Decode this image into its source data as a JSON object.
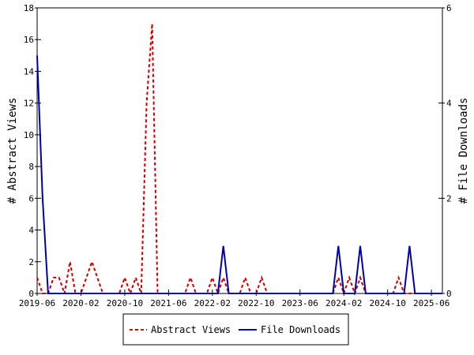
{
  "chart_data": {
    "type": "line",
    "ylabel": "# Abstract Views",
    "y2label": "# File Downloads",
    "ylim": [
      0,
      18
    ],
    "y2lim": [
      0,
      6
    ],
    "yticks": [
      0,
      2,
      4,
      6,
      8,
      10,
      12,
      14,
      16,
      18
    ],
    "y2ticks": [
      0,
      2,
      4,
      6
    ],
    "xticks": [
      "2019-06",
      "2020-02",
      "2020-10",
      "2021-06",
      "2022-02",
      "2022-10",
      "2023-06",
      "2024-02",
      "2024-10",
      "2025-06"
    ],
    "xlim": [
      "2019-06",
      "2025-08"
    ],
    "grid": false,
    "legend": "bottom",
    "series": [
      {
        "name": "Abstract Views",
        "axis": "left",
        "color": "#cc0000",
        "style": "dashed",
        "x": [
          "2019-06",
          "2019-07",
          "2019-08",
          "2019-09",
          "2019-10",
          "2019-11",
          "2019-12",
          "2020-01",
          "2020-02",
          "2020-03",
          "2020-04",
          "2020-05",
          "2020-06",
          "2020-07",
          "2020-08",
          "2020-09",
          "2020-10",
          "2020-11",
          "2020-12",
          "2021-01",
          "2021-02",
          "2021-03",
          "2021-04",
          "2021-05",
          "2021-06",
          "2021-07",
          "2021-08",
          "2021-09",
          "2021-10",
          "2021-11",
          "2021-12",
          "2022-01",
          "2022-02",
          "2022-03",
          "2022-04",
          "2022-05",
          "2022-06",
          "2022-07",
          "2022-08",
          "2022-09",
          "2022-10",
          "2022-11",
          "2022-12",
          "2023-01",
          "2023-02",
          "2023-03",
          "2023-04",
          "2023-05",
          "2023-06",
          "2023-07",
          "2023-08",
          "2023-09",
          "2023-10",
          "2023-11",
          "2023-12",
          "2024-01",
          "2024-02",
          "2024-03",
          "2024-04",
          "2024-05",
          "2024-06",
          "2024-07",
          "2024-08",
          "2024-09",
          "2024-10",
          "2024-11",
          "2024-12",
          "2025-01",
          "2025-02",
          "2025-03",
          "2025-04",
          "2025-05",
          "2025-06",
          "2025-07",
          "2025-08"
        ],
        "values": [
          1,
          0,
          0,
          1,
          1,
          0,
          2,
          0,
          0,
          1,
          2,
          1,
          0,
          0,
          0,
          0,
          1,
          0,
          1,
          0,
          12,
          17,
          0,
          0,
          0,
          0,
          0,
          0,
          1,
          0,
          0,
          0,
          1,
          0,
          1,
          0,
          0,
          0,
          1,
          0,
          0,
          1,
          0,
          0,
          0,
          0,
          0,
          0,
          0,
          0,
          0,
          0,
          0,
          0,
          0,
          1,
          0,
          1,
          0,
          1,
          0,
          0,
          0,
          0,
          0,
          0,
          1,
          0,
          0,
          0,
          0,
          0,
          0,
          0,
          0
        ]
      },
      {
        "name": "File Downloads",
        "axis": "right",
        "color": "#0000aa",
        "style": "solid",
        "x": [
          "2019-06",
          "2019-07",
          "2019-08",
          "2019-09",
          "2019-10",
          "2019-11",
          "2019-12",
          "2020-01",
          "2020-02",
          "2020-03",
          "2020-04",
          "2020-05",
          "2020-06",
          "2020-07",
          "2020-08",
          "2020-09",
          "2020-10",
          "2020-11",
          "2020-12",
          "2021-01",
          "2021-02",
          "2021-03",
          "2021-04",
          "2021-05",
          "2021-06",
          "2021-07",
          "2021-08",
          "2021-09",
          "2021-10",
          "2021-11",
          "2021-12",
          "2022-01",
          "2022-02",
          "2022-03",
          "2022-04",
          "2022-05",
          "2022-06",
          "2022-07",
          "2022-08",
          "2022-09",
          "2022-10",
          "2022-11",
          "2022-12",
          "2023-01",
          "2023-02",
          "2023-03",
          "2023-04",
          "2023-05",
          "2023-06",
          "2023-07",
          "2023-08",
          "2023-09",
          "2023-10",
          "2023-11",
          "2023-12",
          "2024-01",
          "2024-02",
          "2024-03",
          "2024-04",
          "2024-05",
          "2024-06",
          "2024-07",
          "2024-08",
          "2024-09",
          "2024-10",
          "2024-11",
          "2024-12",
          "2025-01",
          "2025-02",
          "2025-03",
          "2025-04",
          "2025-05",
          "2025-06",
          "2025-07",
          "2025-08"
        ],
        "values": [
          5,
          2,
          0,
          0,
          0,
          0,
          0,
          0,
          0,
          0,
          0,
          0,
          0,
          0,
          0,
          0,
          0,
          0,
          0,
          0,
          0,
          0,
          0,
          0,
          0,
          0,
          0,
          0,
          0,
          0,
          0,
          0,
          0,
          0,
          1,
          0,
          0,
          0,
          0,
          0,
          0,
          0,
          0,
          0,
          0,
          0,
          0,
          0,
          0,
          0,
          0,
          0,
          0,
          0,
          0,
          1,
          0,
          0,
          0,
          1,
          0,
          0,
          0,
          0,
          0,
          0,
          0,
          0,
          1,
          0,
          0,
          0,
          0,
          0,
          0
        ]
      }
    ]
  }
}
